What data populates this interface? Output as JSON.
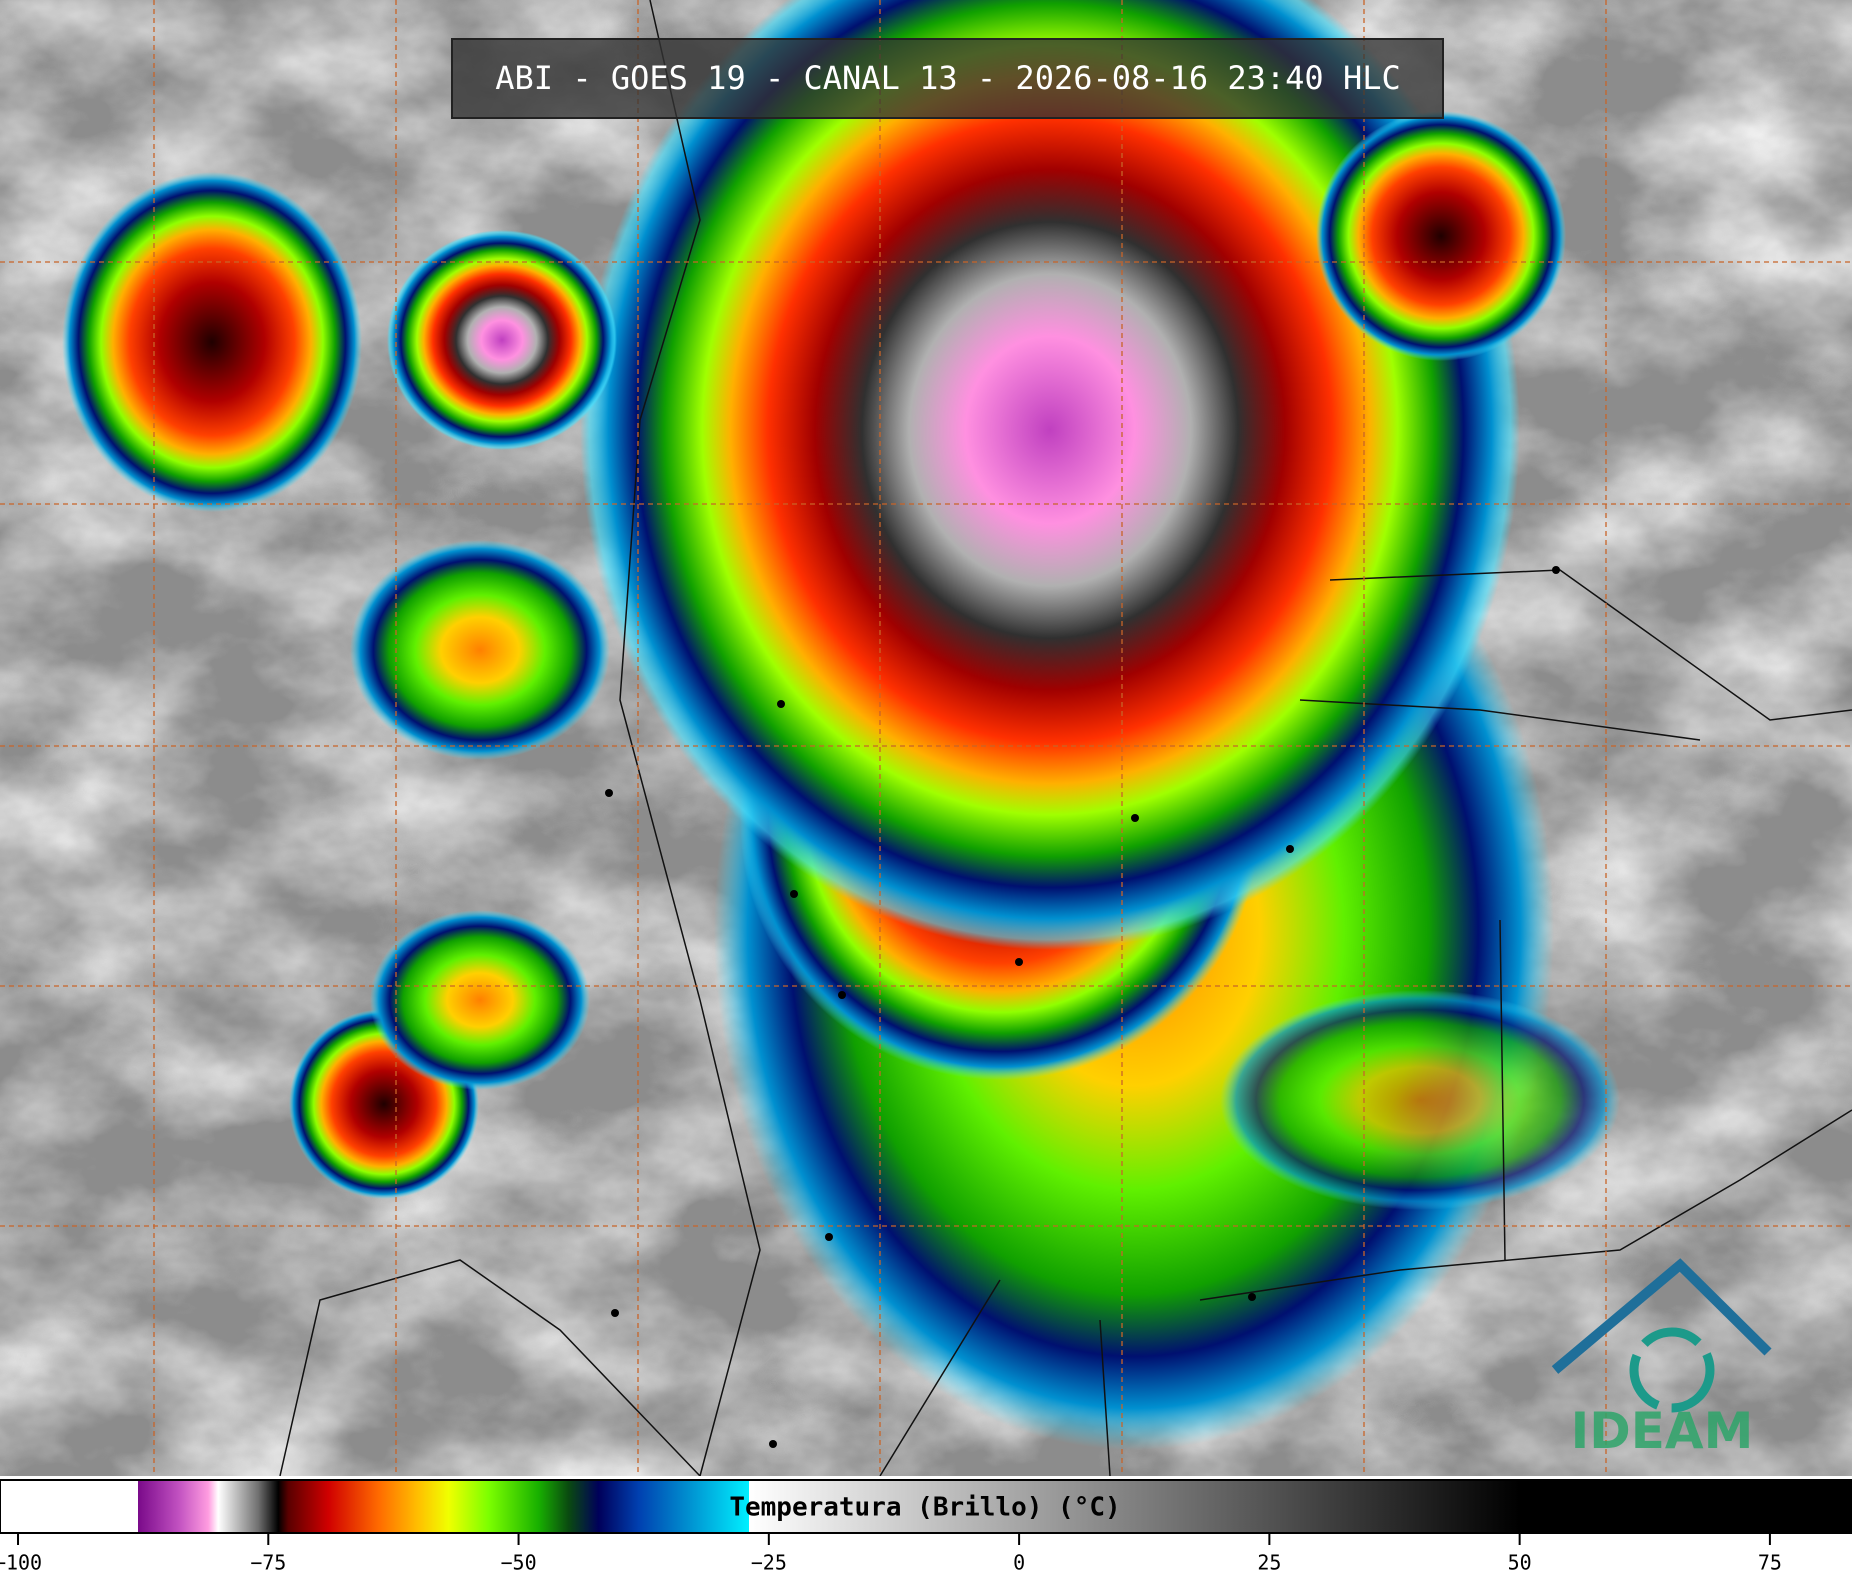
{
  "header": {
    "title": "ABI - GOES 19 - CANAL 13 - 2026-08-16 23:40 HLC"
  },
  "colorbar": {
    "label": "Temperatura (Brillo) (°C)",
    "range": [
      -101.8,
      83.2
    ],
    "ticks": [
      {
        "value": -100,
        "label": "−100"
      },
      {
        "value": -75,
        "label": "−75"
      },
      {
        "value": -50,
        "label": "−50"
      },
      {
        "value": -25,
        "label": "−25"
      },
      0,
      25,
      50,
      75
    ],
    "stops": [
      [
        -101.8,
        "#ffffff"
      ],
      [
        -88,
        "#ffffff"
      ],
      [
        -88,
        "#7a0a8a"
      ],
      [
        -84,
        "#c050c0"
      ],
      [
        -81,
        "#ff9ce0"
      ],
      [
        -80,
        "#ffffff"
      ],
      [
        -76,
        "#707070"
      ],
      [
        -74,
        "#000000"
      ],
      [
        -73,
        "#5a0000"
      ],
      [
        -69,
        "#d00000"
      ],
      [
        -64,
        "#ff6a00"
      ],
      [
        -60,
        "#ffc000"
      ],
      [
        -57,
        "#f0ff00"
      ],
      [
        -53,
        "#7cff00"
      ],
      [
        -48,
        "#18b000"
      ],
      [
        -45,
        "#0a4a10"
      ],
      [
        -42,
        "#00005a"
      ],
      [
        -38,
        "#0040b0"
      ],
      [
        -33,
        "#0090d0"
      ],
      [
        -27,
        "#00f0ff"
      ],
      [
        -27,
        "#ffffff"
      ],
      [
        50,
        "#000000"
      ],
      [
        83.2,
        "#000000"
      ]
    ]
  },
  "logo": {
    "text": "IDEAM"
  }
}
